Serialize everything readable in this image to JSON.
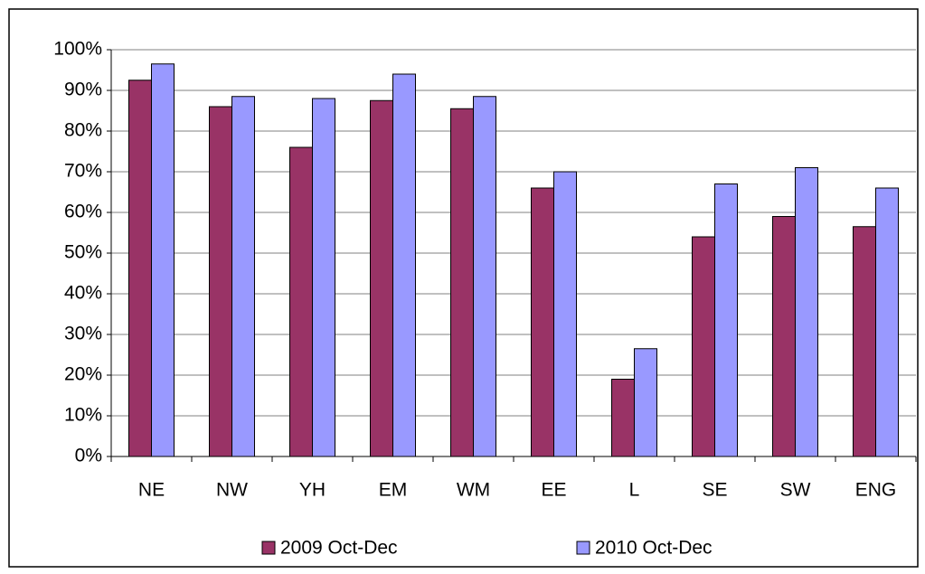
{
  "chart_data": {
    "type": "bar",
    "categories": [
      "NE",
      "NW",
      "YH",
      "EM",
      "WM",
      "EE",
      "L",
      "SE",
      "SW",
      "ENG"
    ],
    "series": [
      {
        "name": "2009 Oct-Dec",
        "color": "#993366",
        "values": [
          92.5,
          86,
          76,
          87.5,
          85.5,
          66,
          19,
          54,
          59,
          56.5
        ]
      },
      {
        "name": "2010 Oct-Dec",
        "color": "#9999ff",
        "values": [
          96.5,
          88.5,
          88,
          94,
          88.5,
          70,
          26.5,
          67,
          71,
          66
        ]
      }
    ],
    "ylim": [
      0,
      100
    ],
    "yticks": [
      {
        "value": 0,
        "label": "0%"
      },
      {
        "value": 10,
        "label": "10%"
      },
      {
        "value": 20,
        "label": "20%"
      },
      {
        "value": 30,
        "label": "30%"
      },
      {
        "value": 40,
        "label": "40%"
      },
      {
        "value": 50,
        "label": "50%"
      },
      {
        "value": 60,
        "label": "60%"
      },
      {
        "value": 70,
        "label": "70%"
      },
      {
        "value": 80,
        "label": "80%"
      },
      {
        "value": 90,
        "label": "90%"
      },
      {
        "value": 100,
        "label": "100%"
      }
    ],
    "grid": true,
    "legend": "bottom"
  }
}
